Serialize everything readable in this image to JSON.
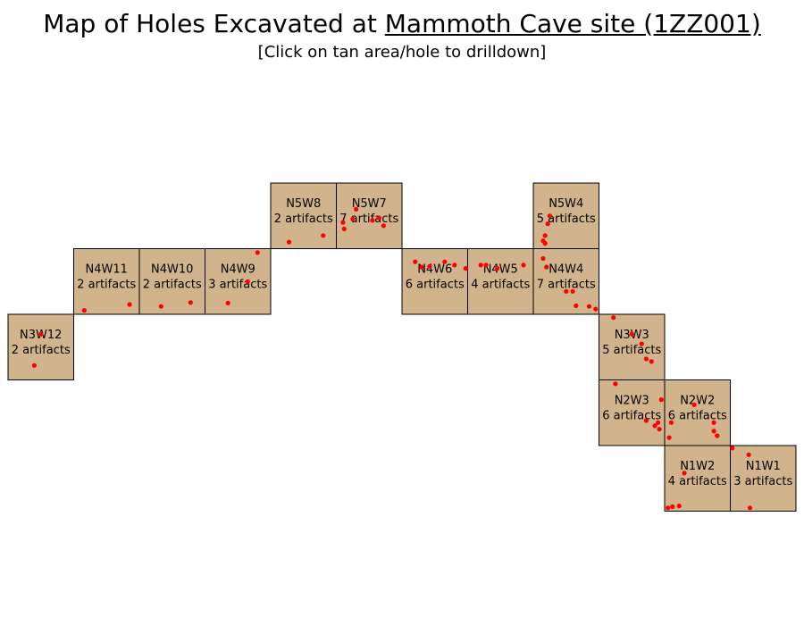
{
  "header": {
    "title_prefix": "Map of Holes Excavated at ",
    "site_name": "Mammoth Cave site (1ZZ001)",
    "subtitle": "[Click on tan area/hole to drilldown]"
  },
  "colors": {
    "hole_fill": "#d2b48c",
    "artifact": "#ff0000",
    "outline": "#000000"
  },
  "holes": [
    {
      "id": "N5W8",
      "count": "2 artifacts",
      "n": 5,
      "w": 8,
      "artifacts": [
        [
          0.28,
          0.9
        ],
        [
          0.8,
          0.8
        ]
      ]
    },
    {
      "id": "N5W7",
      "count": "7 artifacts",
      "n": 5,
      "w": 7,
      "artifacts": [
        [
          0.3,
          0.4
        ],
        [
          0.25,
          0.55
        ],
        [
          0.1,
          0.6
        ],
        [
          0.12,
          0.7
        ],
        [
          0.55,
          0.57
        ],
        [
          0.65,
          0.53
        ],
        [
          0.72,
          0.65
        ]
      ]
    },
    {
      "id": "N5W4",
      "count": "5 artifacts",
      "n": 5,
      "w": 4,
      "artifacts": [
        [
          0.25,
          0.5
        ],
        [
          0.22,
          0.62
        ],
        [
          0.18,
          0.8
        ],
        [
          0.15,
          0.88
        ],
        [
          0.18,
          0.92
        ]
      ]
    },
    {
      "id": "N4W11",
      "count": "2 artifacts",
      "n": 4,
      "w": 11,
      "artifacts": [
        [
          0.16,
          0.94
        ],
        [
          0.85,
          0.85
        ]
      ]
    },
    {
      "id": "N4W10",
      "count": "2 artifacts",
      "n": 4,
      "w": 10,
      "artifacts": [
        [
          0.33,
          0.88
        ],
        [
          0.78,
          0.82
        ]
      ]
    },
    {
      "id": "N4W9",
      "count": "3 artifacts",
      "n": 4,
      "w": 9,
      "artifacts": [
        [
          0.8,
          0.06
        ],
        [
          0.65,
          0.5
        ],
        [
          0.35,
          0.83
        ]
      ]
    },
    {
      "id": "N4W6",
      "count": "6 artifacts",
      "n": 4,
      "w": 6,
      "artifacts": [
        [
          0.2,
          0.2
        ],
        [
          0.3,
          0.28
        ],
        [
          0.42,
          0.27
        ],
        [
          0.65,
          0.2
        ],
        [
          0.8,
          0.25
        ],
        [
          0.97,
          0.3
        ]
      ]
    },
    {
      "id": "N4W5",
      "count": "4 artifacts",
      "n": 4,
      "w": 5,
      "artifacts": [
        [
          0.2,
          0.25
        ],
        [
          0.28,
          0.25
        ],
        [
          0.45,
          0.3
        ],
        [
          0.85,
          0.25
        ]
      ]
    },
    {
      "id": "N4W4",
      "count": "7 artifacts",
      "n": 4,
      "w": 4,
      "artifacts": [
        [
          0.15,
          0.15
        ],
        [
          0.2,
          0.28
        ],
        [
          0.5,
          0.65
        ],
        [
          0.6,
          0.65
        ],
        [
          0.65,
          0.87
        ],
        [
          0.85,
          0.88
        ],
        [
          0.95,
          0.92
        ]
      ]
    },
    {
      "id": "N3W12",
      "count": "2 artifacts",
      "n": 3,
      "w": 12,
      "artifacts": [
        [
          0.5,
          0.3
        ],
        [
          0.4,
          0.78
        ]
      ]
    },
    {
      "id": "N3W3",
      "count": "5 artifacts",
      "n": 3,
      "w": 3,
      "artifacts": [
        [
          0.22,
          0.05
        ],
        [
          0.5,
          0.3
        ],
        [
          0.65,
          0.45
        ],
        [
          0.72,
          0.68
        ],
        [
          0.8,
          0.72
        ]
      ]
    },
    {
      "id": "N2W3",
      "count": "6 artifacts",
      "n": 2,
      "w": 3,
      "artifacts": [
        [
          0.25,
          0.06
        ],
        [
          0.95,
          0.3
        ],
        [
          0.9,
          0.65
        ],
        [
          0.72,
          0.62
        ],
        [
          0.85,
          0.7
        ],
        [
          0.92,
          0.75
        ]
      ]
    },
    {
      "id": "N2W2",
      "count": "6 artifacts",
      "n": 2,
      "w": 2,
      "artifacts": [
        [
          0.1,
          0.65
        ],
        [
          0.45,
          0.38
        ],
        [
          0.75,
          0.65
        ],
        [
          0.75,
          0.78
        ],
        [
          0.8,
          0.85
        ],
        [
          0.07,
          0.88
        ]
      ]
    },
    {
      "id": "N1W2",
      "count": "4 artifacts",
      "n": 1,
      "w": 2,
      "artifacts": [
        [
          0.3,
          0.42
        ],
        [
          0.05,
          0.95
        ],
        [
          0.12,
          0.93
        ],
        [
          0.22,
          0.92
        ]
      ]
    },
    {
      "id": "N1W1",
      "count": "3 artifacts",
      "n": 1,
      "w": 1,
      "artifacts": [
        [
          0.03,
          0.04
        ],
        [
          0.28,
          0.14
        ],
        [
          0.3,
          0.95
        ]
      ]
    }
  ]
}
